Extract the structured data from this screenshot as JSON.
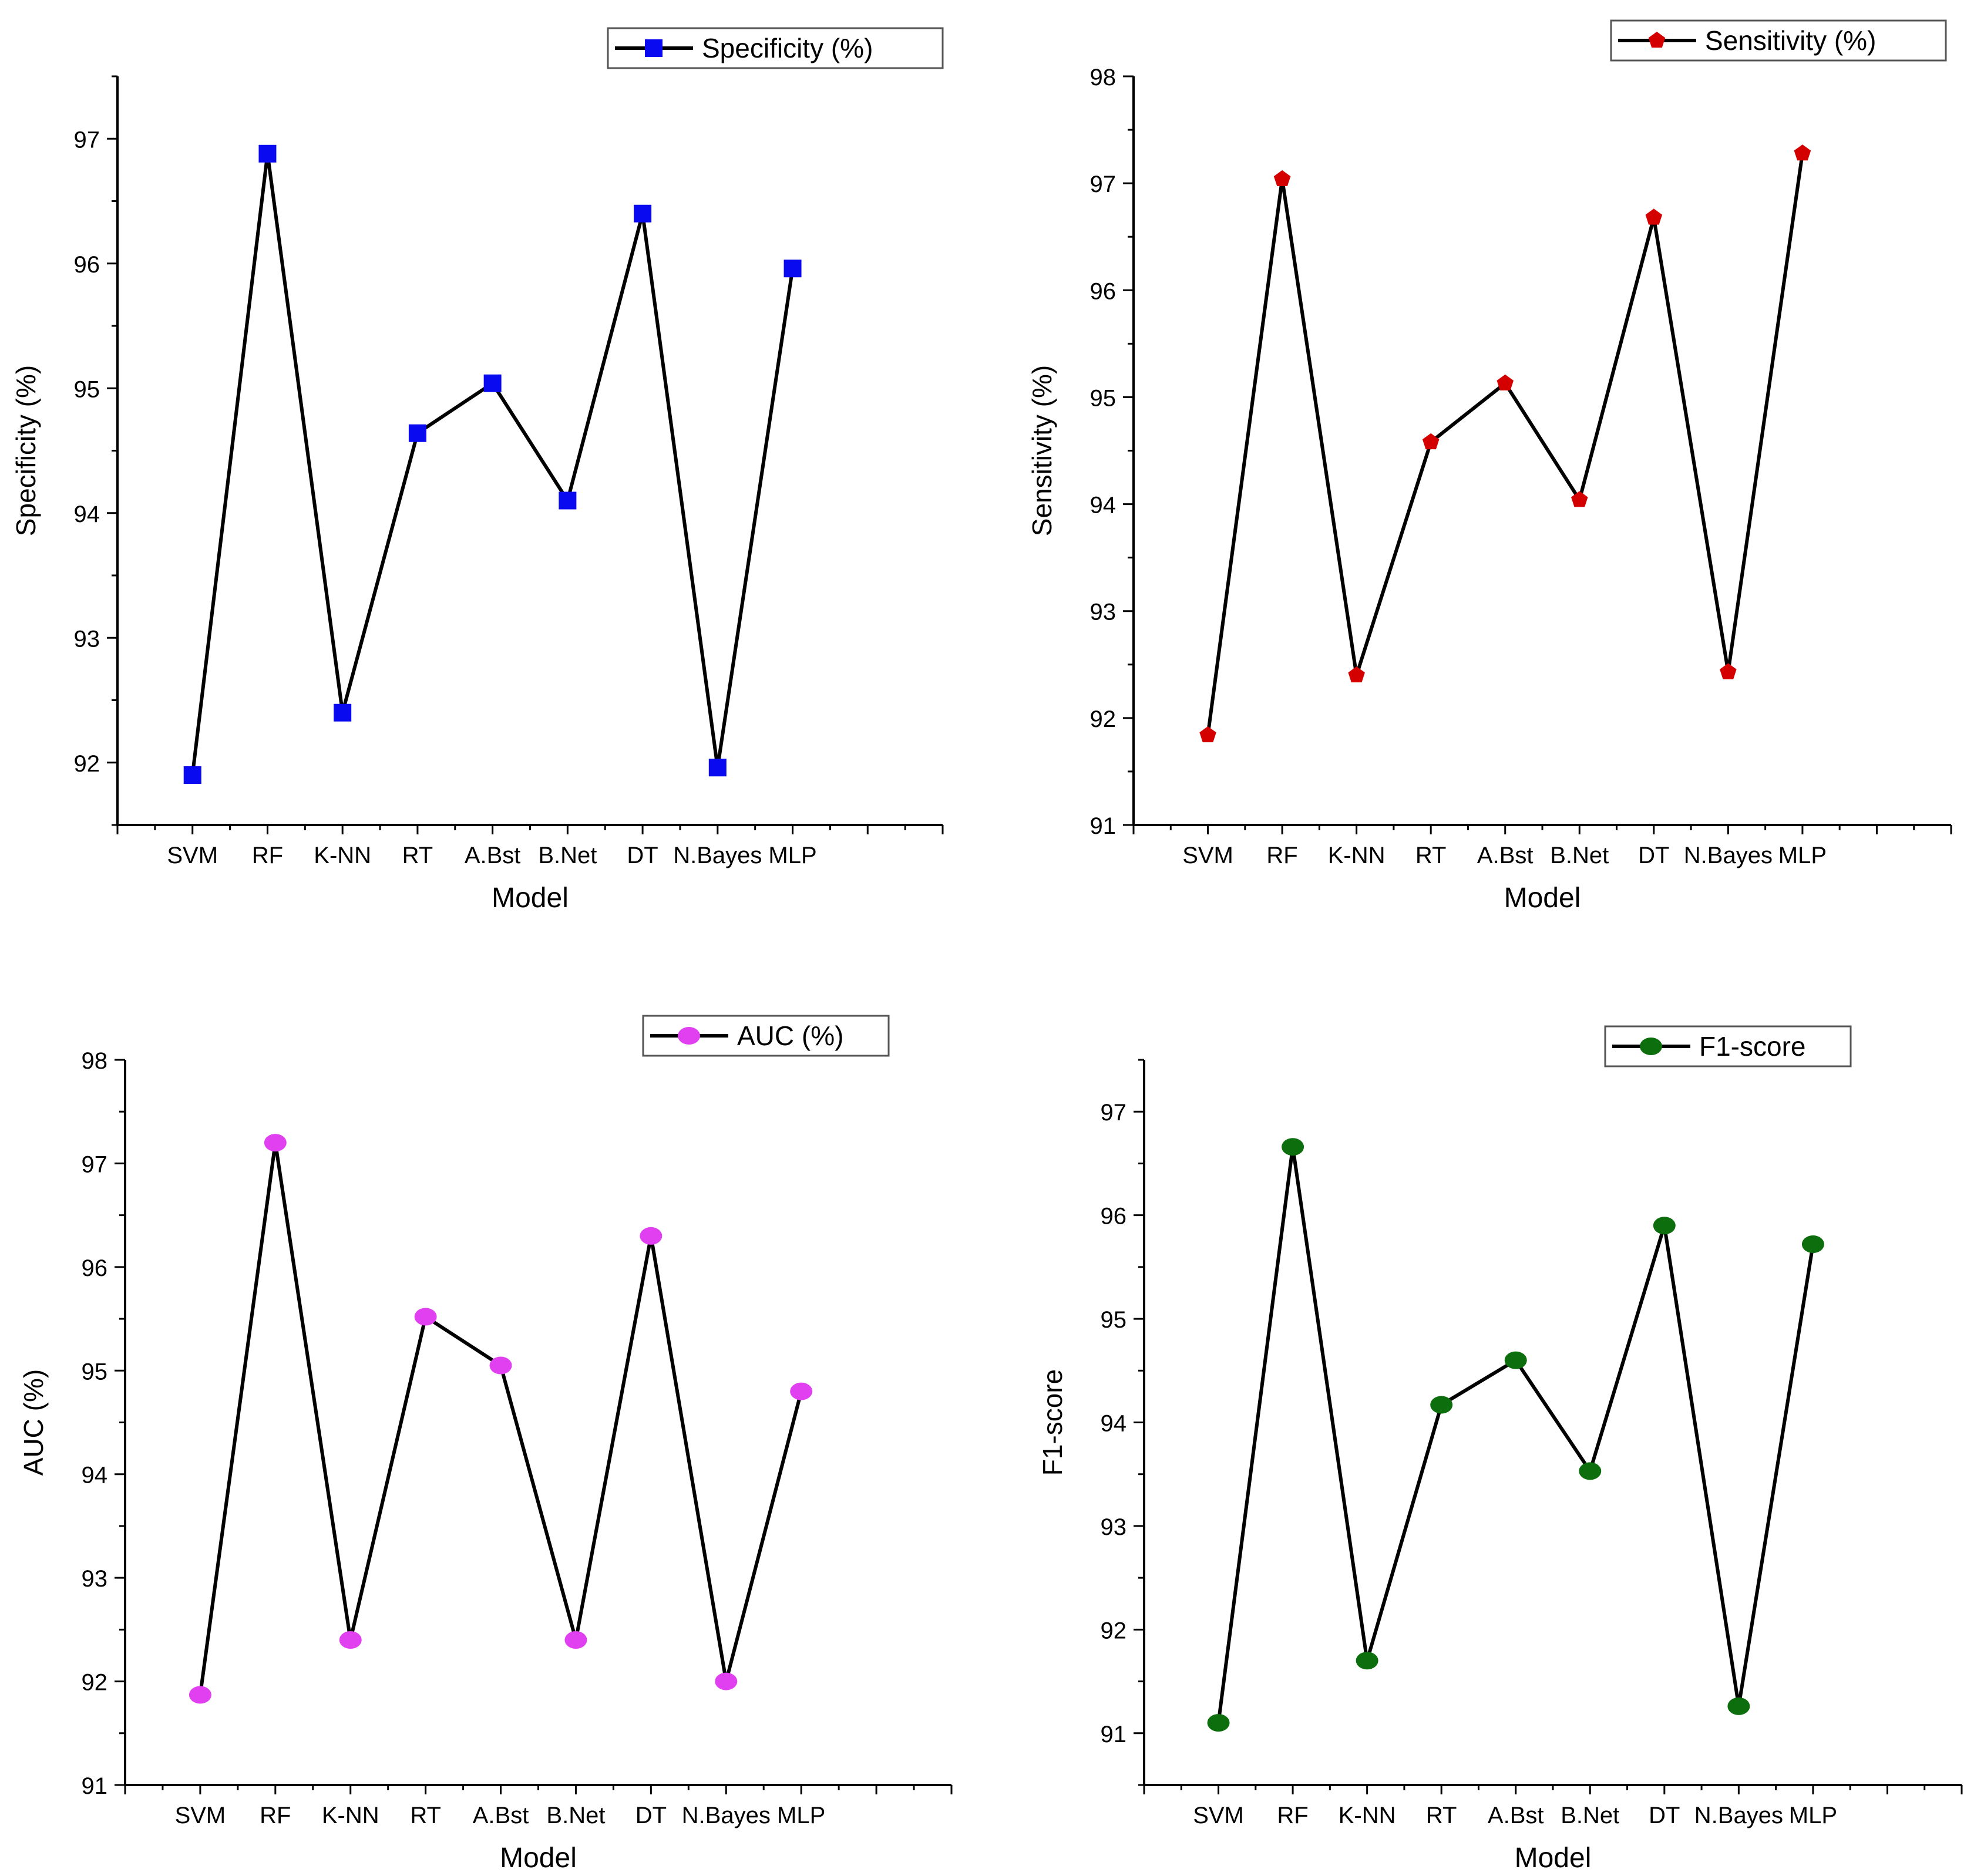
{
  "chart_data": [
    {
      "type": "line",
      "xlabel": "Model",
      "ylabel": "Specificity (%)",
      "categories": [
        "SVM",
        "RF",
        "K-NN",
        "RT",
        "A.Bst",
        "B.Net",
        "DT",
        "N.Bayes",
        "MLP"
      ],
      "ylim": [
        91.5,
        97.5
      ],
      "yticks": [
        92,
        93,
        94,
        95,
        96,
        97
      ],
      "legend_position": "top-right",
      "series": [
        {
          "name": "Specificity (%)",
          "marker": "square",
          "marker_color": "#0a0af0",
          "line_color": "#000000",
          "values": [
            91.9,
            96.88,
            92.4,
            94.64,
            95.04,
            94.1,
            96.4,
            91.96,
            95.96
          ]
        }
      ]
    },
    {
      "type": "line",
      "xlabel": "Model",
      "ylabel": "Sensitivity (%)",
      "categories": [
        "SVM",
        "RF",
        "K-NN",
        "RT",
        "A.Bst",
        "B.Net",
        "DT",
        "N.Bayes",
        "MLP"
      ],
      "ylim": [
        91,
        98
      ],
      "yticks": [
        91,
        92,
        93,
        94,
        95,
        96,
        97,
        98
      ],
      "legend_position": "top-right",
      "series": [
        {
          "name": "Sensitivity (%)",
          "marker": "pentagon",
          "marker_color": "#d40000",
          "line_color": "#000000",
          "values": [
            91.84,
            97.04,
            92.4,
            94.58,
            95.13,
            94.04,
            96.68,
            92.43,
            97.28
          ]
        }
      ]
    },
    {
      "type": "line",
      "xlabel": "Model",
      "ylabel": "AUC (%)",
      "categories": [
        "SVM",
        "RF",
        "K-NN",
        "RT",
        "A.Bst",
        "B.Net",
        "DT",
        "N.Bayes",
        "MLP"
      ],
      "ylim": [
        91,
        98
      ],
      "yticks": [
        91,
        92,
        93,
        94,
        95,
        96,
        97,
        98
      ],
      "legend_position": "top-right",
      "series": [
        {
          "name": "AUC (%)",
          "marker": "circle",
          "marker_color": "#e040f0",
          "line_color": "#000000",
          "values": [
            91.87,
            97.2,
            92.4,
            95.52,
            95.05,
            92.4,
            96.3,
            92.0,
            94.8
          ]
        }
      ]
    },
    {
      "type": "line",
      "xlabel": "Model",
      "ylabel": "F1-score",
      "categories": [
        "SVM",
        "RF",
        "K-NN",
        "RT",
        "A.Bst",
        "B.Net",
        "DT",
        "N.Bayes",
        "MLP"
      ],
      "ylim": [
        90.5,
        97.5
      ],
      "yticks": [
        91,
        92,
        93,
        94,
        95,
        96,
        97
      ],
      "legend_position": "top-right",
      "series": [
        {
          "name": "F1-score",
          "marker": "circle",
          "marker_color": "#0c6e0c",
          "line_color": "#000000",
          "values": [
            91.1,
            96.66,
            91.7,
            94.17,
            94.6,
            93.53,
            95.9,
            91.26,
            95.72
          ]
        }
      ]
    }
  ]
}
